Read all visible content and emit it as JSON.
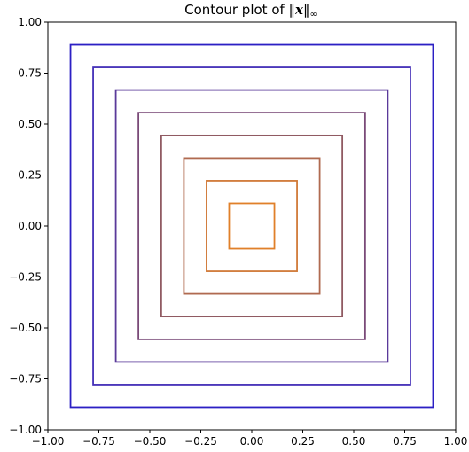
{
  "chart_data": {
    "type": "contour",
    "title": {
      "prefix": "Contour plot of ",
      "norm_open": "‖",
      "variable": "x",
      "norm_close": "‖",
      "subscript": "∞"
    },
    "xlabel": "",
    "ylabel": "",
    "xlim": [
      -1.0,
      1.0
    ],
    "ylim": [
      -1.0,
      1.0
    ],
    "grid": false,
    "x_ticks": [
      "−1.00",
      "−0.75",
      "−0.50",
      "−0.25",
      "0.00",
      "0.25",
      "0.50",
      "0.75",
      "1.00"
    ],
    "y_ticks": [
      "−1.00",
      "−0.75",
      "−0.50",
      "−0.25",
      "0.00",
      "0.25",
      "0.50",
      "0.75",
      "1.00"
    ],
    "x_tick_values": [
      -1.0,
      -0.75,
      -0.5,
      -0.25,
      0.0,
      0.25,
      0.5,
      0.75,
      1.0
    ],
    "y_tick_values": [
      -1.0,
      -0.75,
      -0.5,
      -0.25,
      0.0,
      0.25,
      0.5,
      0.75,
      1.0
    ],
    "levels": [
      {
        "level": 0.111,
        "color": "#e0802a"
      },
      {
        "level": 0.222,
        "color": "#d07a38"
      },
      {
        "level": 0.333,
        "color": "#b06a50"
      },
      {
        "level": 0.444,
        "color": "#905a62"
      },
      {
        "level": 0.556,
        "color": "#7a4a78"
      },
      {
        "level": 0.667,
        "color": "#5a3a9a"
      },
      {
        "level": 0.778,
        "color": "#4430b8"
      },
      {
        "level": 0.889,
        "color": "#2c20c4"
      }
    ]
  }
}
